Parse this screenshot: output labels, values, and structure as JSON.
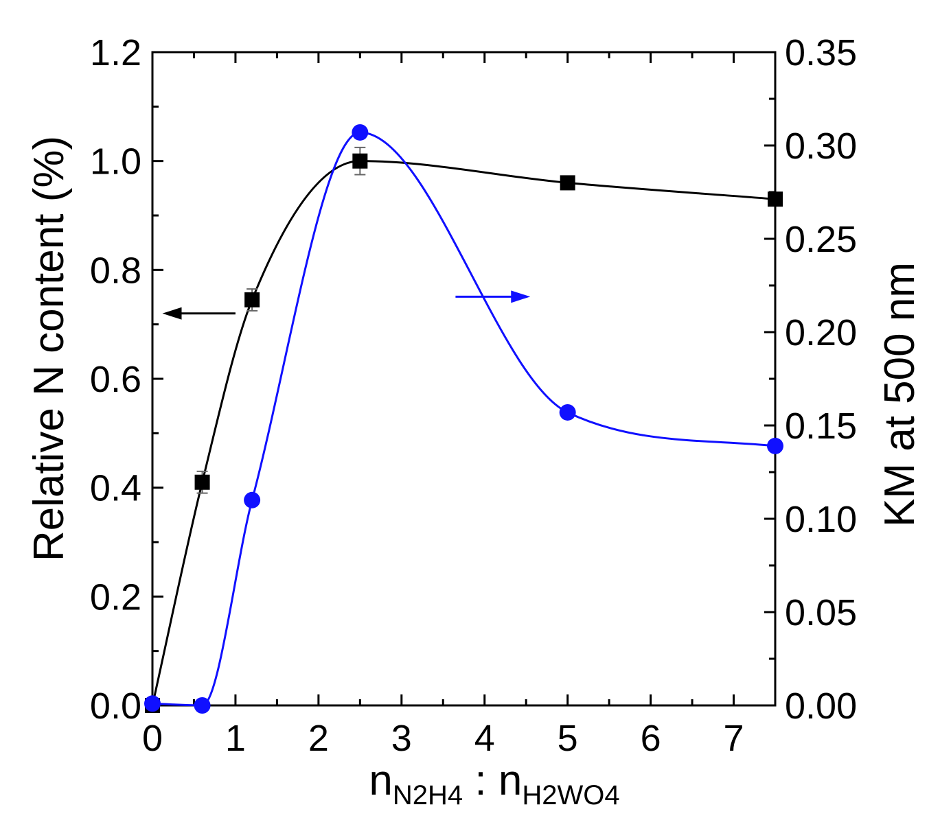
{
  "chart_data": {
    "type": "line",
    "xlabel": {
      "n1": "n",
      "sub1": "N2H4",
      "sep": " : ",
      "n2": "n",
      "sub2": "H2WO4"
    },
    "ylabel_left": "Relative N content (%)",
    "ylabel_right": "KM at 500 nm",
    "xlim": [
      0,
      7.5
    ],
    "ylim_left": [
      0,
      1.2
    ],
    "ylim_right": [
      0,
      0.35
    ],
    "x_ticks": [
      "0",
      "1",
      "2",
      "3",
      "4",
      "5",
      "6",
      "7"
    ],
    "y_left_ticks": [
      "0.0",
      "0.2",
      "0.4",
      "0.6",
      "0.8",
      "1.0",
      "1.2"
    ],
    "y_right_ticks": [
      "0.00",
      "0.05",
      "0.10",
      "0.15",
      "0.20",
      "0.25",
      "0.30",
      "0.35"
    ],
    "grid": false,
    "series": [
      {
        "axis": "left",
        "marker": "square",
        "color": "#000000",
        "x": [
          0,
          0.6,
          1.2,
          2.5,
          5.0,
          7.5
        ],
        "y": [
          0.0,
          0.41,
          0.745,
          1.0,
          0.96,
          0.93
        ],
        "error": [
          0,
          0.02,
          0.02,
          0.025,
          0.01,
          0.01
        ]
      },
      {
        "axis": "right",
        "marker": "circle",
        "color": "#1010ff",
        "x": [
          0,
          0.6,
          1.2,
          2.5,
          5.0,
          7.5
        ],
        "y": [
          0.001,
          0.0,
          0.11,
          0.307,
          0.157,
          0.139
        ]
      }
    ],
    "annotations": [
      {
        "type": "arrow",
        "points_to": "left-axis",
        "color": "#000000",
        "series": 0
      },
      {
        "type": "arrow",
        "points_to": "right-axis",
        "color": "#1010ff",
        "series": 1
      }
    ]
  }
}
